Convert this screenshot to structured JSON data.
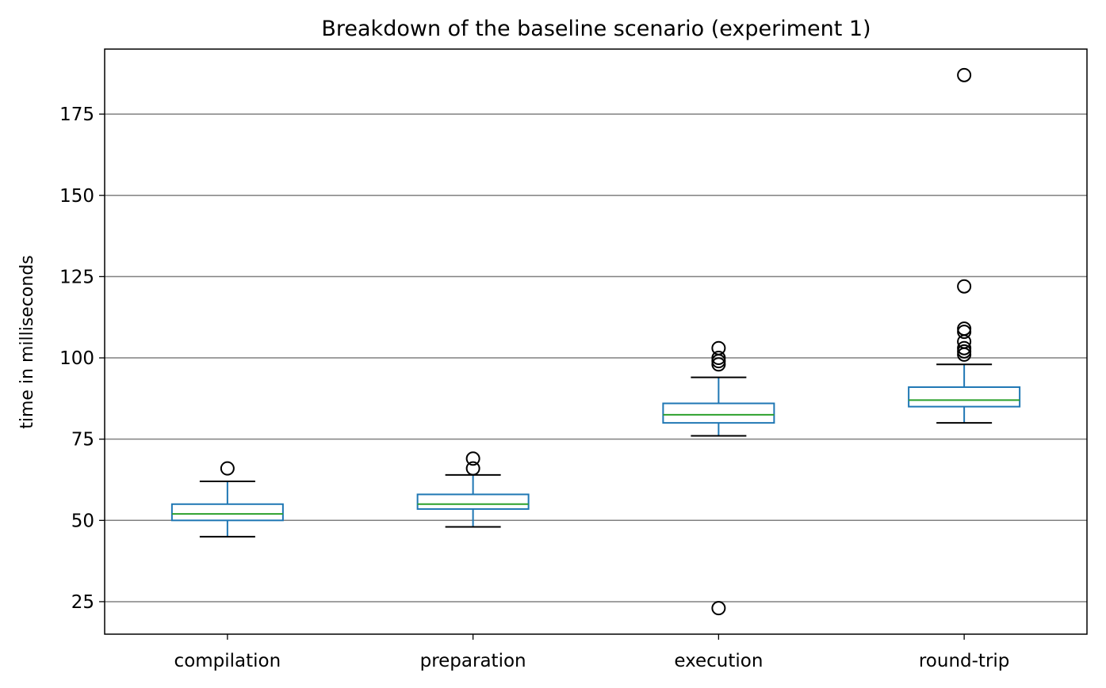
{
  "chart_data": {
    "type": "box",
    "title": "Breakdown of the baseline scenario (experiment 1)",
    "xlabel": "",
    "ylabel": "time in milliseconds",
    "ylim": [
      15,
      195
    ],
    "yticks": [
      25,
      50,
      75,
      100,
      125,
      150,
      175
    ],
    "grid": "horizontal",
    "categories": [
      "compilation",
      "preparation",
      "execution",
      "round-trip"
    ],
    "boxes": [
      {
        "category": "compilation",
        "whisker_low": 45,
        "q1": 50,
        "median": 52,
        "q3": 55,
        "whisker_high": 62,
        "outliers": [
          66
        ]
      },
      {
        "category": "preparation",
        "whisker_low": 48,
        "q1": 53.5,
        "median": 55,
        "q3": 58,
        "whisker_high": 64,
        "outliers": [
          66,
          69
        ]
      },
      {
        "category": "execution",
        "whisker_low": 76,
        "q1": 80,
        "median": 82.5,
        "q3": 86,
        "whisker_high": 94,
        "outliers": [
          23,
          98,
          99,
          100,
          103
        ]
      },
      {
        "category": "round-trip",
        "whisker_low": 80,
        "q1": 85,
        "median": 87,
        "q3": 91,
        "whisker_high": 98,
        "outliers": [
          101,
          102,
          103,
          105,
          108,
          109,
          122,
          187
        ]
      }
    ],
    "colors": {
      "box": "#1f77b4",
      "median": "#2ca02c",
      "whisker": "#000000",
      "grid": "#808080"
    }
  }
}
